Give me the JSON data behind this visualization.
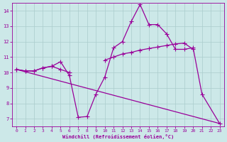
{
  "xlabel": "Windchill (Refroidissement éolien,°C)",
  "bg_color": "#cce8e8",
  "line_color": "#990099",
  "grid_color": "#aacccc",
  "line1_x": [
    0,
    1,
    2,
    3,
    4,
    5,
    6,
    7,
    8,
    9,
    10,
    11,
    12,
    13,
    14,
    15,
    16,
    17,
    18,
    19,
    20,
    21,
    23
  ],
  "line1_y": [
    10.2,
    10.1,
    10.1,
    10.3,
    10.4,
    10.7,
    9.8,
    7.1,
    7.15,
    8.6,
    9.7,
    11.6,
    12.0,
    13.3,
    14.4,
    13.1,
    13.1,
    12.5,
    11.5,
    11.5,
    11.6,
    8.6,
    6.7
  ],
  "line2_x": [
    0,
    1,
    2,
    3,
    4,
    5,
    6,
    10,
    11,
    12,
    13,
    14,
    15,
    16,
    17,
    18,
    19,
    20
  ],
  "line2_y": [
    10.2,
    10.1,
    10.1,
    10.3,
    10.4,
    10.2,
    10.0,
    10.8,
    11.0,
    11.2,
    11.3,
    11.45,
    11.55,
    11.65,
    11.75,
    11.85,
    11.9,
    11.5
  ],
  "line3_x": [
    0,
    23
  ],
  "line3_y": [
    10.2,
    6.7
  ],
  "xlim": [
    -0.5,
    23.5
  ],
  "ylim": [
    6.5,
    14.5
  ],
  "xticks": [
    0,
    1,
    2,
    3,
    4,
    5,
    6,
    7,
    8,
    9,
    10,
    11,
    12,
    13,
    14,
    15,
    16,
    17,
    18,
    19,
    20,
    21,
    22,
    23
  ],
  "yticks": [
    7,
    8,
    9,
    10,
    11,
    12,
    13,
    14
  ]
}
